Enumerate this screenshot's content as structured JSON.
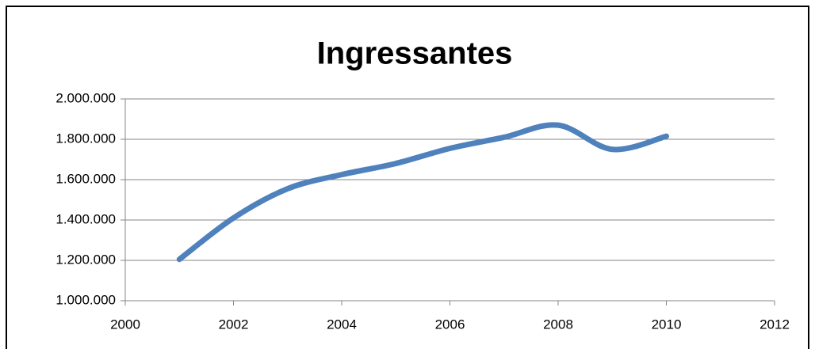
{
  "chart_data": {
    "type": "line",
    "title": "Ingressantes",
    "x": [
      2001,
      2002,
      2003,
      2004,
      2005,
      2006,
      2007,
      2008,
      2009,
      2010
    ],
    "series": [
      {
        "name": "Ingressantes",
        "color": "#4f81bd",
        "values": [
          1205000,
          1410000,
          1555000,
          1625000,
          1680000,
          1755000,
          1810000,
          1870000,
          1750000,
          1815000
        ]
      }
    ],
    "xlim": [
      2000,
      2012
    ],
    "xticks": [
      2000,
      2002,
      2004,
      2006,
      2008,
      2010,
      2012
    ],
    "ylim": [
      1000000,
      2000000
    ],
    "yticks": [
      {
        "value": 1000000,
        "label": "1.000.000"
      },
      {
        "value": 1200000,
        "label": "1.200.000"
      },
      {
        "value": 1400000,
        "label": "1.400.000"
      },
      {
        "value": 1600000,
        "label": "1.600.000"
      },
      {
        "value": 1800000,
        "label": "1.800.000"
      },
      {
        "value": 2000000,
        "label": "2.000.000"
      }
    ],
    "grid": true,
    "smooth": true
  }
}
